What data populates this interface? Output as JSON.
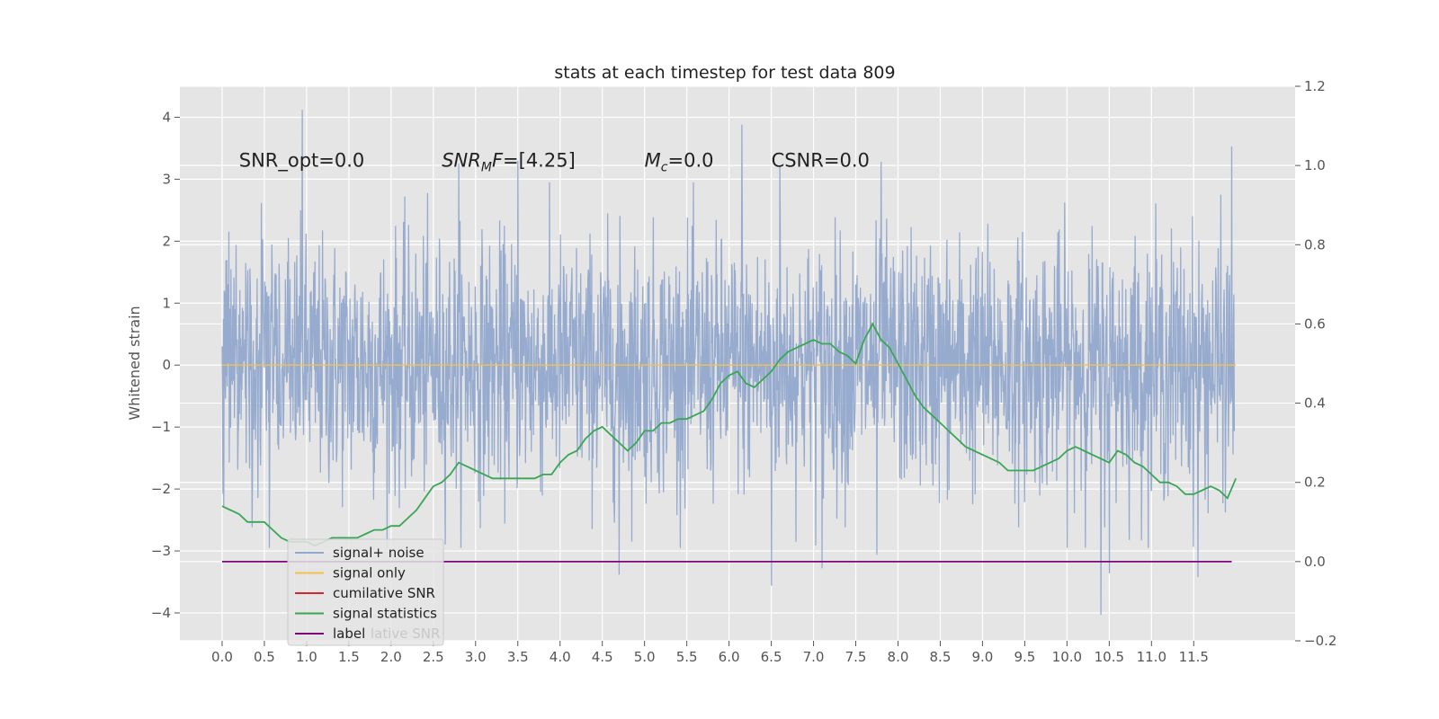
{
  "chart_data": {
    "type": "line",
    "title": "stats at each timestep for test data 809",
    "ylabel": "Whitened strain",
    "xlim": [
      -0.5,
      12.7
    ],
    "ylim": [
      -4.45,
      4.5
    ],
    "y2lim": [
      -0.2,
      1.2
    ],
    "x_ticks": [
      "0.0",
      "0.5",
      "1.0",
      "1.5",
      "2.0",
      "2.5",
      "3.0",
      "3.5",
      "4.0",
      "4.5",
      "5.0",
      "5.5",
      "6.0",
      "6.5",
      "7.0",
      "7.5",
      "8.0",
      "8.5",
      "9.0",
      "9.5",
      "10.0",
      "10.5",
      "11.0",
      "11.5"
    ],
    "y_ticks": [
      "4",
      "3",
      "2",
      "1",
      "0",
      "−1",
      "−2",
      "−3",
      "−4"
    ],
    "y_tick_values": [
      4,
      3,
      2,
      1,
      0,
      -1,
      -2,
      -3,
      -4
    ],
    "y2_ticks": [
      "1.2",
      "1.0",
      "0.8",
      "0.6",
      "0.4",
      "0.2",
      "0.0",
      "−0.2"
    ],
    "y2_tick_values": [
      1.2,
      1.0,
      0.8,
      0.6,
      0.4,
      0.2,
      0.0,
      -0.2
    ],
    "grid": true,
    "annotations": [
      {
        "text": "SNR_opt=0.0",
        "x": 0.2,
        "y": 3.3
      },
      {
        "text": "SNR_MF=[4.25]",
        "x": 2.6,
        "y": 3.3
      },
      {
        "text": "M_c=0.0",
        "x": 5.0,
        "y": 3.3
      },
      {
        "text": "CSNR=0.0",
        "x": 6.5,
        "y": 3.3
      }
    ],
    "legend": {
      "placement": "lower-left",
      "entries": [
        "signal+ noise",
        "signal only",
        "cumilative SNR",
        "signal statistics",
        "label"
      ],
      "colors": [
        "#92a8cd",
        "#f2c14e",
        "#d62728",
        "#3aa655",
        "#7a0a7a"
      ],
      "hidden_text": "lative SNR"
    },
    "series": [
      {
        "name": "signal+ noise",
        "axis": "left",
        "color": "#92a8cd",
        "x_start": 0.0,
        "x_end": 11.98,
        "n_points": 2400,
        "y_std": 1.0,
        "notable_peaks": [
          {
            "x": 0.95,
            "y": 4.12
          },
          {
            "x": 6.15,
            "y": 3.88
          },
          {
            "x": 11.55,
            "y": 3.83
          },
          {
            "x": 11.95,
            "y": 3.53
          },
          {
            "x": 3.5,
            "y": 3.3
          },
          {
            "x": 7.8,
            "y": 3.28
          },
          {
            "x": 2.8,
            "y": 3.25
          },
          {
            "x": 6.6,
            "y": 3.2
          },
          {
            "x": 10.4,
            "y": -4.03
          },
          {
            "x": 6.5,
            "y": -3.56
          },
          {
            "x": 4.7,
            "y": -3.38
          },
          {
            "x": 11.55,
            "y": -3.42
          },
          {
            "x": 10.5,
            "y": -3.36
          },
          {
            "x": 7.1,
            "y": -3.28
          },
          {
            "x": 7.75,
            "y": -3.06
          }
        ]
      },
      {
        "name": "signal only",
        "axis": "left",
        "color": "#f2c14e",
        "x": [
          0.0,
          12.0
        ],
        "values": [
          0.0,
          0.0
        ]
      },
      {
        "name": "signal statistics",
        "axis": "right",
        "color": "#3aa655",
        "x": [
          0.0,
          0.1,
          0.2,
          0.3,
          0.4,
          0.5,
          0.6,
          0.7,
          0.8,
          0.9,
          1.0,
          1.1,
          1.2,
          1.3,
          1.4,
          1.5,
          1.6,
          1.7,
          1.8,
          1.9,
          2.0,
          2.1,
          2.2,
          2.3,
          2.4,
          2.5,
          2.6,
          2.7,
          2.8,
          2.9,
          3.0,
          3.1,
          3.2,
          3.3,
          3.4,
          3.5,
          3.6,
          3.7,
          3.8,
          3.9,
          4.0,
          4.1,
          4.2,
          4.3,
          4.4,
          4.5,
          4.6,
          4.7,
          4.8,
          4.9,
          5.0,
          5.1,
          5.2,
          5.3,
          5.4,
          5.5,
          5.6,
          5.7,
          5.8,
          5.9,
          6.0,
          6.1,
          6.2,
          6.3,
          6.4,
          6.5,
          6.6,
          6.7,
          6.8,
          6.9,
          7.0,
          7.1,
          7.2,
          7.3,
          7.4,
          7.5,
          7.6,
          7.7,
          7.8,
          7.9,
          8.0,
          8.1,
          8.2,
          8.3,
          8.4,
          8.5,
          8.6,
          8.7,
          8.8,
          8.9,
          9.0,
          9.1,
          9.2,
          9.3,
          9.4,
          9.5,
          9.6,
          9.7,
          9.8,
          9.9,
          10.0,
          10.1,
          10.2,
          10.3,
          10.4,
          10.5,
          10.6,
          10.7,
          10.8,
          10.9,
          11.0,
          11.1,
          11.2,
          11.3,
          11.4,
          11.5,
          11.6,
          11.7,
          11.8,
          11.9,
          12.0
        ],
        "values": [
          0.14,
          0.13,
          0.12,
          0.1,
          0.1,
          0.1,
          0.08,
          0.06,
          0.05,
          0.05,
          0.05,
          0.04,
          0.05,
          0.06,
          0.06,
          0.06,
          0.06,
          0.07,
          0.08,
          0.08,
          0.09,
          0.09,
          0.11,
          0.13,
          0.16,
          0.19,
          0.2,
          0.22,
          0.25,
          0.24,
          0.23,
          0.22,
          0.21,
          0.21,
          0.21,
          0.21,
          0.21,
          0.21,
          0.22,
          0.22,
          0.25,
          0.27,
          0.28,
          0.31,
          0.33,
          0.34,
          0.32,
          0.3,
          0.28,
          0.3,
          0.33,
          0.33,
          0.35,
          0.35,
          0.36,
          0.36,
          0.37,
          0.38,
          0.41,
          0.45,
          0.47,
          0.48,
          0.45,
          0.44,
          0.46,
          0.48,
          0.51,
          0.53,
          0.54,
          0.55,
          0.56,
          0.55,
          0.55,
          0.53,
          0.52,
          0.5,
          0.56,
          0.6,
          0.56,
          0.54,
          0.5,
          0.46,
          0.42,
          0.39,
          0.37,
          0.35,
          0.33,
          0.31,
          0.29,
          0.28,
          0.27,
          0.26,
          0.25,
          0.23,
          0.23,
          0.23,
          0.23,
          0.24,
          0.25,
          0.26,
          0.28,
          0.29,
          0.28,
          0.27,
          0.26,
          0.25,
          0.28,
          0.27,
          0.25,
          0.24,
          0.22,
          0.2,
          0.2,
          0.19,
          0.17,
          0.17,
          0.18,
          0.19,
          0.18,
          0.16,
          0.21
        ]
      },
      {
        "name": "label",
        "axis": "right",
        "color": "#7a0a7a",
        "x": [
          0.0,
          11.95
        ],
        "values": [
          0.0,
          0.0
        ]
      }
    ]
  }
}
